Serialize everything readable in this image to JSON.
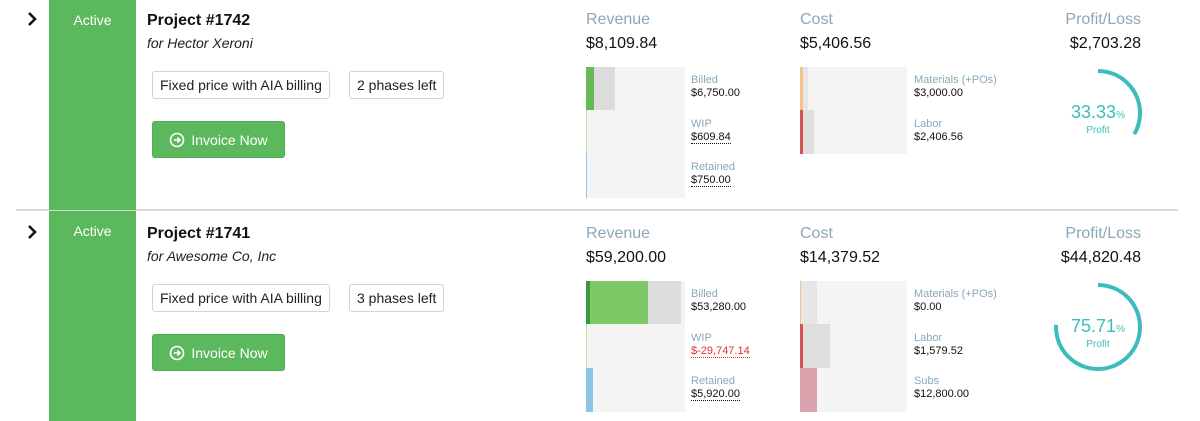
{
  "projects": [
    {
      "status": "Active",
      "title": "Project #1742",
      "client": "for Hector Xeroni",
      "tags": [
        "Fixed price with AIA billing",
        "2 phases left"
      ],
      "invoice_label": "Invoice Now",
      "revenue": {
        "heading": "Revenue",
        "total": "$8,109.84",
        "billed_label": "Billed",
        "billed": "$6,750.00",
        "wip_label": "WIP",
        "wip": "$609.84",
        "retained_label": "Retained",
        "retained": "$750.00"
      },
      "cost": {
        "heading": "Cost",
        "total": "$5,406.56",
        "materials_label": "Materials (+POs)",
        "materials": "$3,000.00",
        "labor_label": "Labor",
        "labor": "$2,406.56"
      },
      "profit": {
        "heading": "Profit/Loss",
        "total": "$2,703.28",
        "percent": "33.33",
        "percent_unit": "%",
        "label": "Profit",
        "fraction": 0.3333
      }
    },
    {
      "status": "Active",
      "title": "Project #1741",
      "client": "for Awesome Co, Inc",
      "tags": [
        "Fixed price with AIA billing",
        "3 phases left"
      ],
      "invoice_label": "Invoice Now",
      "revenue": {
        "heading": "Revenue",
        "total": "$59,200.00",
        "billed_label": "Billed",
        "billed": "$53,280.00",
        "wip_label": "WIP",
        "wip": "$-29,747.14",
        "retained_label": "Retained",
        "retained": "$5,920.00"
      },
      "cost": {
        "heading": "Cost",
        "total": "$14,379.52",
        "materials_label": "Materials (+POs)",
        "materials": "$0.00",
        "labor_label": "Labor",
        "labor": "$1,579.52",
        "subs_label": "Subs",
        "subs": "$12,800.00"
      },
      "profit": {
        "heading": "Profit/Loss",
        "total": "$44,820.48",
        "percent": "75.71",
        "percent_unit": "%",
        "label": "Profit",
        "fraction": 0.7571
      }
    }
  ],
  "colors": {
    "status_green": "#5cb85c",
    "billed_dark": "#3a9a3a",
    "billed_light": "#7ec865",
    "retained_blue": "#8ec4e8",
    "materials_orange": "#f5c38a",
    "labor_red": "#d9534f",
    "subs_pink": "#dba3ad",
    "gauge_teal": "#3cbcbc"
  },
  "icons": {
    "expand": "chevron-right-icon",
    "invoice": "arrow-circle-right-icon"
  }
}
